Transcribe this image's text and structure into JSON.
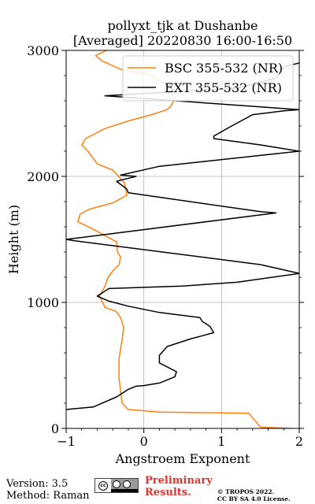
{
  "chart_data": {
    "type": "line",
    "title": "pollyxt_tjk at Dushanbe",
    "subtitle": "[Averaged] 20220830 16:00-16:50",
    "xlabel": "Angstroem Exponent",
    "ylabel": "Height (m)",
    "xlim": [
      -1,
      2
    ],
    "ylim": [
      0,
      3000
    ],
    "xticks": [
      -1,
      0,
      1,
      2
    ],
    "xtick_labels": [
      "−1",
      "0",
      "1",
      "2"
    ],
    "yticks": [
      0,
      1000,
      2000,
      3000
    ],
    "ytick_labels": [
      "0",
      "1000",
      "2000",
      "3000"
    ],
    "grid": true,
    "legend_position": "top-right",
    "series": [
      {
        "name": "BSC 355-532 (NR)",
        "color": "#ff7f0e",
        "points": [
          [
            1.9,
            0
          ],
          [
            1.5,
            10
          ],
          [
            1.35,
            120
          ],
          [
            0.2,
            130
          ],
          [
            -0.2,
            150
          ],
          [
            -0.28,
            200
          ],
          [
            -0.3,
            300
          ],
          [
            -0.32,
            400
          ],
          [
            -0.32,
            550
          ],
          [
            -0.28,
            700
          ],
          [
            -0.26,
            800
          ],
          [
            -0.3,
            880
          ],
          [
            -0.36,
            930
          ],
          [
            -0.5,
            960
          ],
          [
            -0.57,
            1050
          ],
          [
            -0.5,
            1130
          ],
          [
            -0.46,
            1200
          ],
          [
            -0.4,
            1250
          ],
          [
            -0.32,
            1300
          ],
          [
            -0.3,
            1360
          ],
          [
            -0.34,
            1400
          ],
          [
            -0.35,
            1480
          ],
          [
            -0.65,
            1580
          ],
          [
            -0.85,
            1640
          ],
          [
            -0.82,
            1700
          ],
          [
            -0.7,
            1740
          ],
          [
            -0.4,
            1790
          ],
          [
            -0.22,
            1850
          ],
          [
            -0.25,
            1950
          ],
          [
            -0.4,
            2050
          ],
          [
            -0.6,
            2100
          ],
          [
            -0.72,
            2200
          ],
          [
            -0.8,
            2250
          ],
          [
            -0.75,
            2300
          ],
          [
            -0.5,
            2380
          ],
          [
            -0.2,
            2440
          ],
          [
            0.1,
            2490
          ],
          [
            0.3,
            2530
          ],
          [
            0.35,
            2560
          ],
          [
            0.4,
            2620
          ],
          [
            0.3,
            2720
          ],
          [
            0.1,
            2800
          ],
          [
            -0.3,
            2850
          ],
          [
            -0.55,
            2920
          ],
          [
            -0.62,
            2960
          ],
          [
            -0.48,
            3000
          ]
        ]
      },
      {
        "name": "EXT 355-532 (NR)",
        "color": "#000000",
        "points": [
          [
            -1.0,
            150
          ],
          [
            -0.65,
            170
          ],
          [
            -0.35,
            250
          ],
          [
            -0.2,
            310
          ],
          [
            -0.1,
            335
          ],
          [
            0.0,
            340
          ],
          [
            0.2,
            360
          ],
          [
            0.4,
            410
          ],
          [
            0.42,
            450
          ],
          [
            0.2,
            520
          ],
          [
            0.2,
            580
          ],
          [
            0.3,
            650
          ],
          [
            0.6,
            710
          ],
          [
            0.9,
            760
          ],
          [
            0.85,
            810
          ],
          [
            0.75,
            850
          ],
          [
            0.72,
            880
          ],
          [
            0.2,
            920
          ],
          [
            -0.2,
            970
          ],
          [
            -0.45,
            1010
          ],
          [
            -0.6,
            1050
          ],
          [
            -0.45,
            1110
          ],
          [
            0.5,
            1130
          ],
          [
            1.2,
            1160
          ],
          [
            2.0,
            1230
          ],
          [
            1.5,
            1300
          ],
          [
            -0.9,
            1490
          ],
          [
            -1.0,
            1500
          ],
          [
            1.7,
            1710
          ],
          [
            1.5,
            1720
          ],
          [
            -0.2,
            1870
          ],
          [
            -0.22,
            1900
          ],
          [
            -0.35,
            1960
          ],
          [
            -0.3,
            1970
          ],
          [
            -0.1,
            2000
          ],
          [
            -0.3,
            2010
          ],
          [
            0.2,
            2080
          ],
          [
            2.0,
            2200
          ],
          [
            1.5,
            2250
          ],
          [
            0.9,
            2300
          ],
          [
            0.9,
            2320
          ],
          [
            1.1,
            2390
          ],
          [
            1.25,
            2440
          ],
          [
            1.4,
            2490
          ],
          [
            1.8,
            2520
          ],
          [
            2.0,
            2530
          ],
          [
            -0.5,
            2640
          ],
          [
            1.2,
            2700
          ],
          [
            1.7,
            2780
          ],
          [
            1.8,
            2870
          ],
          [
            2.0,
            2900
          ]
        ]
      }
    ]
  },
  "footer": {
    "version": "Version: 3.5",
    "method": "Method: Raman",
    "preliminary_line1": "Preliminary",
    "preliminary_line2": "Results.",
    "copyright_line1": "© TROPOS 2022.",
    "copyright_line2": "CC BY SA 4.0 License.",
    "license_badge_text": "cc",
    "preliminary_color": "#e8302c"
  }
}
